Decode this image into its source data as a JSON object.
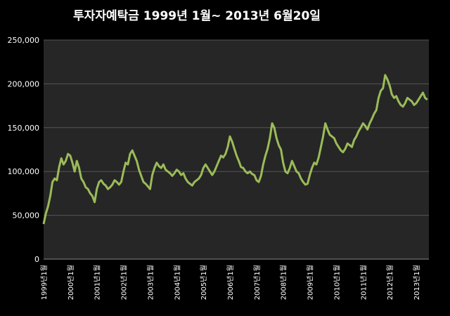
{
  "chart_data": {
    "type": "line",
    "title": "투자자예탁금    1999년 1월~ 2013년 6월20일",
    "xlabel": "",
    "ylabel": "",
    "ylim": [
      0,
      250000
    ],
    "yticks": [
      "0",
      "50,000",
      "100,000",
      "150,000",
      "200,000",
      "250,000"
    ],
    "xticks": [
      "1999년1월",
      "2000년1월",
      "2001년1월",
      "2002년1월",
      "2003년1월",
      "2004년1월",
      "2005년1월",
      "2006년1월",
      "2007년1월",
      "2008년1월",
      "2009년1월",
      "2010년1월",
      "2011년1월",
      "2012년1월",
      "2013년1월"
    ],
    "grid": true,
    "legend": "none",
    "colors": {
      "background": "#000000",
      "plot_area": "#262626",
      "grid": "#555555",
      "line": "#9bbb59",
      "text": "#ffffff"
    },
    "series": [
      {
        "x": [
          "1999-01",
          "1999-02",
          "1999-03",
          "1999-04",
          "1999-05",
          "1999-06",
          "1999-07",
          "1999-08",
          "1999-09",
          "1999-10",
          "1999-11",
          "1999-12",
          "2000-01",
          "2000-02",
          "2000-03",
          "2000-04",
          "2000-05",
          "2000-06",
          "2000-07",
          "2000-08",
          "2000-09",
          "2000-10",
          "2000-11",
          "2000-12",
          "2001-01",
          "2001-02",
          "2001-03",
          "2001-04",
          "2001-05",
          "2001-06",
          "2001-07",
          "2001-08",
          "2001-09",
          "2001-10",
          "2001-11",
          "2001-12",
          "2002-01",
          "2002-02",
          "2002-03",
          "2002-04",
          "2002-05",
          "2002-06",
          "2002-07",
          "2002-08",
          "2002-09",
          "2002-10",
          "2002-11",
          "2002-12",
          "2003-01",
          "2003-02",
          "2003-03",
          "2003-04",
          "2003-05",
          "2003-06",
          "2003-07",
          "2003-08",
          "2003-09",
          "2003-10",
          "2003-11",
          "2003-12",
          "2004-01",
          "2004-02",
          "2004-03",
          "2004-04",
          "2004-05",
          "2004-06",
          "2004-07",
          "2004-08",
          "2004-09",
          "2004-10",
          "2004-11",
          "2004-12",
          "2005-01",
          "2005-02",
          "2005-03",
          "2005-04",
          "2005-05",
          "2005-06",
          "2005-07",
          "2005-08",
          "2005-09",
          "2005-10",
          "2005-11",
          "2005-12",
          "2006-01",
          "2006-02",
          "2006-03",
          "2006-04",
          "2006-05",
          "2006-06",
          "2006-07",
          "2006-08",
          "2006-09",
          "2006-10",
          "2006-11",
          "2006-12",
          "2007-01",
          "2007-02",
          "2007-03",
          "2007-04",
          "2007-05",
          "2007-06",
          "2007-07",
          "2007-08",
          "2007-09",
          "2007-10",
          "2007-11",
          "2007-12",
          "2008-01",
          "2008-02",
          "2008-03",
          "2008-04",
          "2008-05",
          "2008-06",
          "2008-07",
          "2008-08",
          "2008-09",
          "2008-10",
          "2008-11",
          "2008-12",
          "2009-01",
          "2009-02",
          "2009-03",
          "2009-04",
          "2009-05",
          "2009-06",
          "2009-07",
          "2009-08",
          "2009-09",
          "2009-10",
          "2009-11",
          "2009-12",
          "2010-01",
          "2010-02",
          "2010-03",
          "2010-04",
          "2010-05",
          "2010-06",
          "2010-07",
          "2010-08",
          "2010-09",
          "2010-10",
          "2010-11",
          "2010-12",
          "2011-01",
          "2011-02",
          "2011-03",
          "2011-04",
          "2011-05",
          "2011-06",
          "2011-07",
          "2011-08",
          "2011-09",
          "2011-10",
          "2011-11",
          "2011-12",
          "2012-01",
          "2012-02",
          "2012-03",
          "2012-04",
          "2012-05",
          "2012-06",
          "2012-07",
          "2012-08",
          "2012-09",
          "2012-10",
          "2012-11",
          "2012-12",
          "2013-01",
          "2013-02",
          "2013-03",
          "2013-04",
          "2013-05",
          "2013-06"
        ],
        "values": [
          40000,
          52000,
          60000,
          72000,
          88000,
          92000,
          90000,
          105000,
          115000,
          108000,
          112000,
          120000,
          118000,
          110000,
          100000,
          112000,
          104000,
          92000,
          88000,
          82000,
          80000,
          75000,
          72000,
          65000,
          80000,
          88000,
          90000,
          86000,
          84000,
          80000,
          82000,
          85000,
          90000,
          88000,
          85000,
          88000,
          100000,
          110000,
          108000,
          120000,
          124000,
          118000,
          112000,
          102000,
          95000,
          88000,
          86000,
          83000,
          80000,
          96000,
          104000,
          110000,
          106000,
          104000,
          108000,
          102000,
          100000,
          98000,
          95000,
          98000,
          102000,
          100000,
          96000,
          98000,
          92000,
          88000,
          86000,
          84000,
          88000,
          90000,
          92000,
          96000,
          104000,
          108000,
          104000,
          100000,
          96000,
          100000,
          106000,
          112000,
          118000,
          116000,
          120000,
          128000,
          140000,
          134000,
          126000,
          118000,
          112000,
          105000,
          104000,
          100000,
          98000,
          100000,
          97000,
          96000,
          90000,
          88000,
          95000,
          108000,
          118000,
          126000,
          138000,
          155000,
          150000,
          138000,
          130000,
          125000,
          110000,
          100000,
          98000,
          104000,
          112000,
          106000,
          100000,
          98000,
          92000,
          88000,
          85000,
          86000,
          96000,
          104000,
          110000,
          108000,
          116000,
          128000,
          140000,
          155000,
          148000,
          142000,
          140000,
          138000,
          132000,
          128000,
          124000,
          122000,
          126000,
          132000,
          130000,
          128000,
          136000,
          140000,
          146000,
          150000,
          155000,
          152000,
          148000,
          155000,
          160000,
          166000,
          170000,
          184000,
          192000,
          195000,
          210000,
          205000,
          198000,
          188000,
          184000,
          186000,
          180000,
          176000,
          174000,
          178000,
          184000,
          182000,
          180000,
          176000,
          178000,
          182000,
          186000,
          190000,
          184000,
          182000
        ]
      }
    ]
  }
}
